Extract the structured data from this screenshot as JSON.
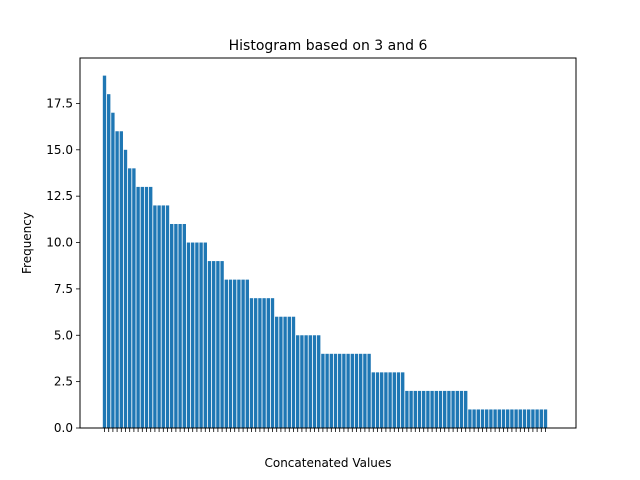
{
  "chart_data": {
    "type": "bar",
    "title": "Histogram based on 3 and 6",
    "xlabel": "Concatenated Values",
    "ylabel": "Frequency",
    "ylim": [
      0,
      19.95
    ],
    "yticks": [
      "0.0",
      "2.5",
      "5.0",
      "7.5",
      "10.0",
      "12.5",
      "15.0",
      "17.5"
    ],
    "ytick_values": [
      0,
      2.5,
      5,
      7.5,
      10,
      12.5,
      15,
      17.5
    ],
    "grid": false,
    "bar_color": "#1f77b4",
    "values": [
      19,
      18,
      17,
      16,
      16,
      15,
      14,
      14,
      13,
      13,
      13,
      13,
      12,
      12,
      12,
      12,
      11,
      11,
      11,
      11,
      10,
      10,
      10,
      10,
      10,
      9,
      9,
      9,
      9,
      8,
      8,
      8,
      8,
      8,
      8,
      7,
      7,
      7,
      7,
      7,
      7,
      6,
      6,
      6,
      6,
      6,
      5,
      5,
      5,
      5,
      5,
      5,
      4,
      4,
      4,
      4,
      4,
      4,
      4,
      4,
      4,
      4,
      4,
      4,
      3,
      3,
      3,
      3,
      3,
      3,
      3,
      3,
      2,
      2,
      2,
      2,
      2,
      2,
      2,
      2,
      2,
      2,
      2,
      2,
      2,
      2,
      2,
      1,
      1,
      1,
      1,
      1,
      1,
      1,
      1,
      1,
      1,
      1,
      1,
      1,
      1,
      1,
      1,
      1,
      1,
      1
    ]
  }
}
